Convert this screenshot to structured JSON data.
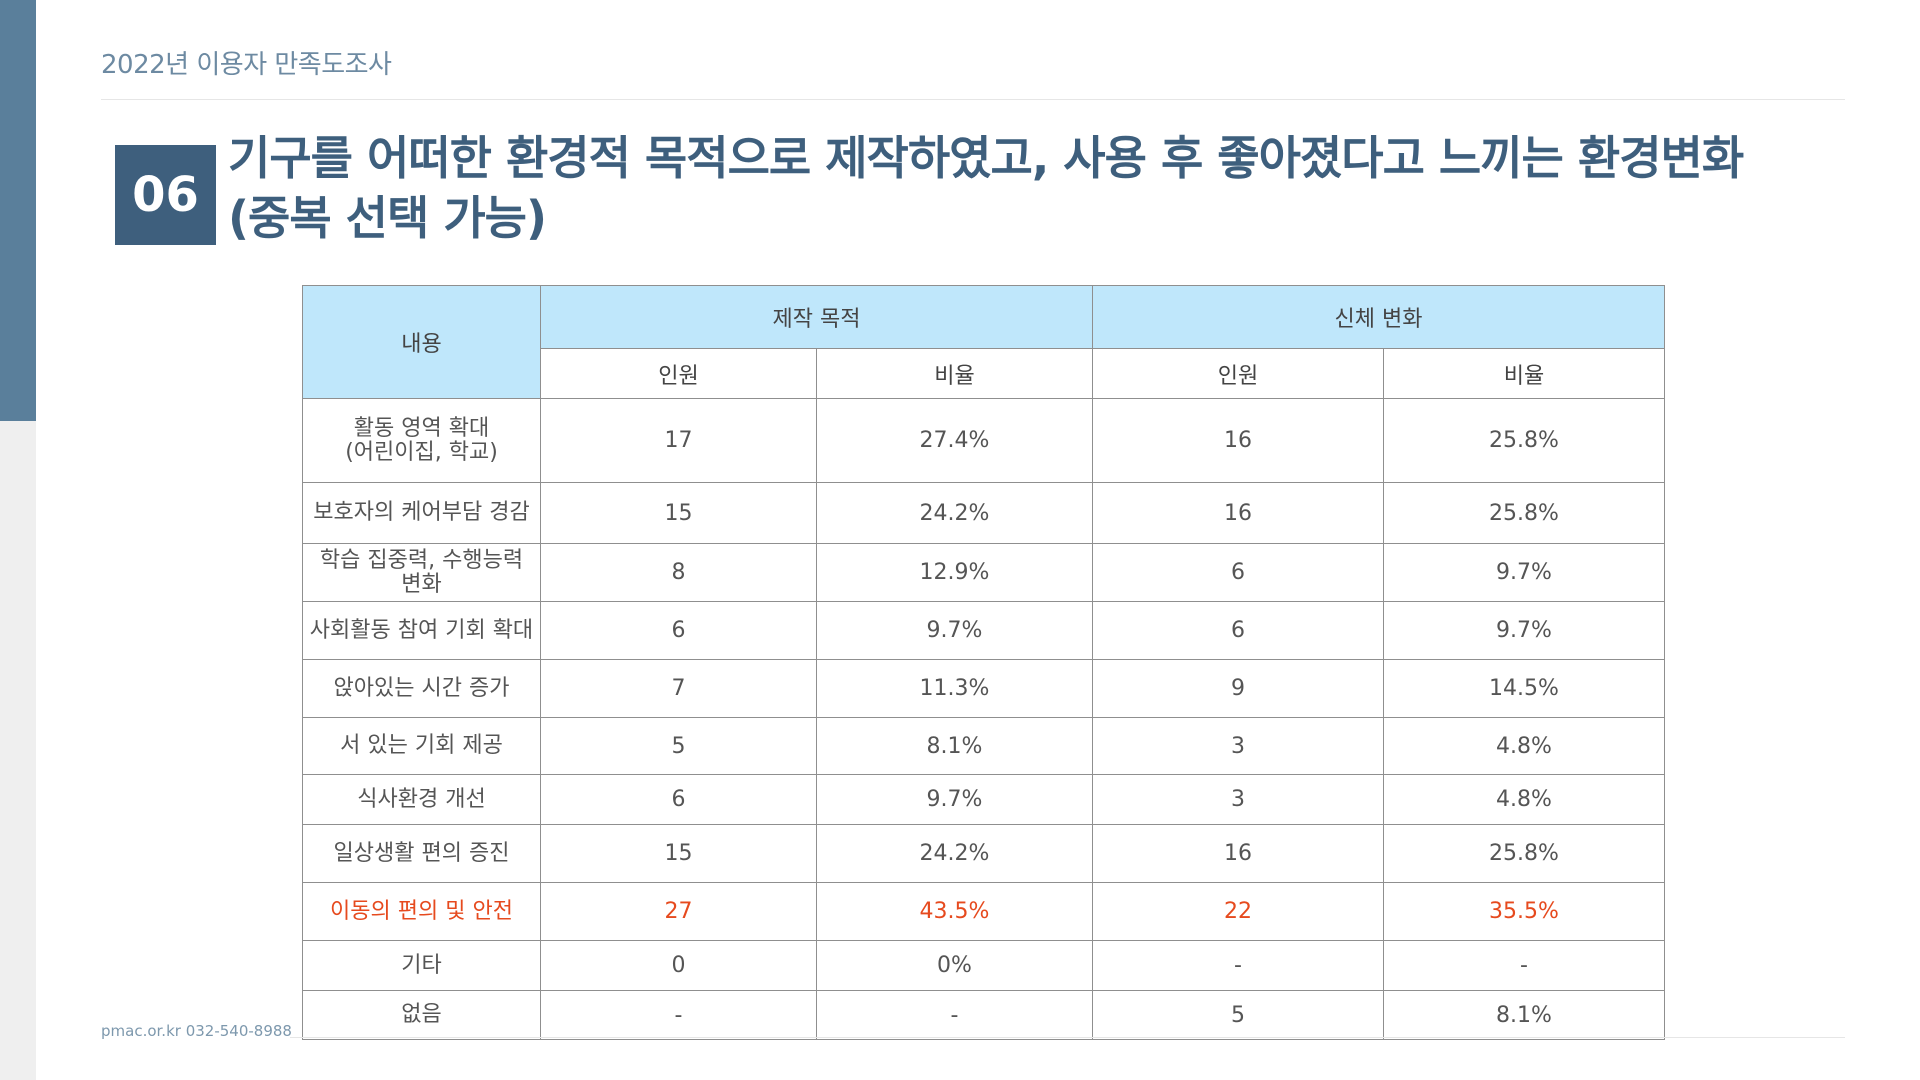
{
  "header": {
    "title": "2022년 이용자 만족도조사"
  },
  "section": {
    "number": "06",
    "title_line1": "기구를 어떠한 환경적 목적으로 제작하였고, 사용 후 좋아졌다고 느끼는 환경변화",
    "title_line2": "(중복 선택 가능)"
  },
  "table": {
    "header_content": "내용",
    "group1": "제작 목적",
    "group2": "신체 변화",
    "sub_count": "인원",
    "sub_ratio": "비율",
    "rows": [
      {
        "label": "활동 영역 확대\n(어린이집, 학교)",
        "c1": "17",
        "r1": "27.4%",
        "c2": "16",
        "r2": "25.8%"
      },
      {
        "label": "보호자의 케어부담 경감",
        "c1": "15",
        "r1": "24.2%",
        "c2": "16",
        "r2": "25.8%"
      },
      {
        "label": "학습 집중력, 수행능력\n변화",
        "c1": "8",
        "r1": "12.9%",
        "c2": "6",
        "r2": "9.7%"
      },
      {
        "label": "사회활동 참여 기회 확대",
        "c1": "6",
        "r1": "9.7%",
        "c2": "6",
        "r2": "9.7%"
      },
      {
        "label": "앉아있는 시간 증가",
        "c1": "7",
        "r1": "11.3%",
        "c2": "9",
        "r2": "14.5%"
      },
      {
        "label": "서 있는 기회 제공",
        "c1": "5",
        "r1": "8.1%",
        "c2": "3",
        "r2": "4.8%"
      },
      {
        "label": "식사환경 개선",
        "c1": "6",
        "r1": "9.7%",
        "c2": "3",
        "r2": "4.8%"
      },
      {
        "label": "일상생활 편의 증진",
        "c1": "15",
        "r1": "24.2%",
        "c2": "16",
        "r2": "25.8%"
      },
      {
        "label": "이동의 편의 및 안전",
        "c1": "27",
        "r1": "43.5%",
        "c2": "22",
        "r2": "35.5%"
      },
      {
        "label": "기타",
        "c1": "0",
        "r1": "0%",
        "c2": "-",
        "r2": "-"
      },
      {
        "label": "없음",
        "c1": "-",
        "r1": "-",
        "c2": "5",
        "r2": "8.1%"
      }
    ]
  },
  "footer": {
    "contact": "pmac.or.kr   032-540-8988"
  },
  "colors": {
    "accent": "#3e5f7d",
    "header_fill": "#bfe7fb",
    "highlight_text": "#e64a1e"
  }
}
